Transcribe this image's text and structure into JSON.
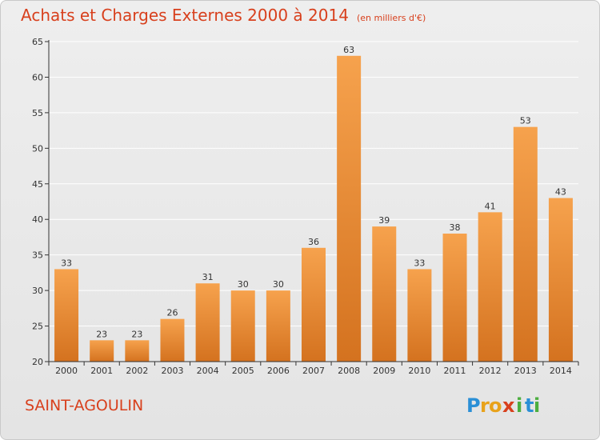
{
  "colors": {
    "title": "#d8401d",
    "bar_light": "#f6a24d",
    "bar_dark": "#d4721f",
    "axis": "#333333",
    "grid": "#ffffff"
  },
  "chart_data": {
    "type": "bar",
    "title": "Achats et Charges Externes 2000 à 2014",
    "unit": "(en milliers d'€)",
    "categories": [
      "2000",
      "2001",
      "2002",
      "2003",
      "2004",
      "2005",
      "2006",
      "2007",
      "2008",
      "2009",
      "2010",
      "2011",
      "2012",
      "2013",
      "2014"
    ],
    "values": [
      33,
      23,
      23,
      26,
      31,
      30,
      30,
      36,
      63,
      39,
      33,
      38,
      41,
      53,
      43
    ],
    "ylim": [
      20,
      65
    ],
    "yticks": [
      20,
      25,
      30,
      35,
      40,
      45,
      50,
      55,
      60,
      65
    ],
    "grid": true,
    "xlabel": "",
    "ylabel": ""
  },
  "footer": {
    "city": "SAINT-AGOULIN",
    "logo": [
      "P",
      "r",
      "o",
      "x",
      "i",
      "t",
      "i"
    ]
  }
}
